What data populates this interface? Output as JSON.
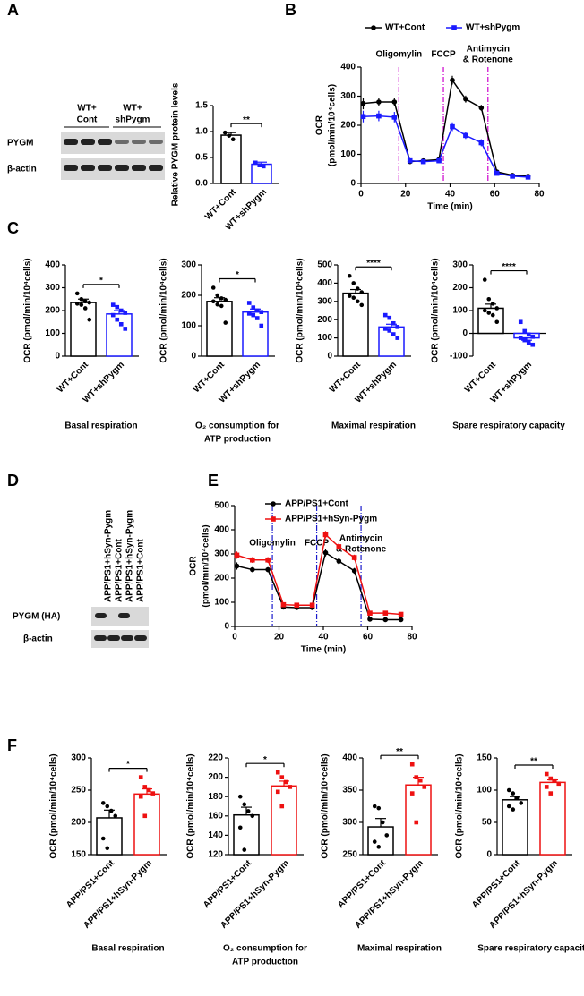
{
  "panel_labels": [
    "A",
    "B",
    "C",
    "D",
    "E",
    "F"
  ],
  "blots": {
    "A": {
      "columns": [
        [
          "WT+",
          "Cont"
        ],
        [
          "WT+",
          "shPygm"
        ]
      ],
      "rows": [
        "PYGM",
        "β-actin"
      ]
    },
    "D": {
      "columns": [
        "APP/PS1+hSyn-Pygm",
        "APP/PS1+Cont",
        "APP/PS1+hSyn-Pygm",
        "APP/PS1+Cont"
      ],
      "rows": [
        "PYGM (HA)",
        "β-actin"
      ]
    }
  },
  "chart_data": [
    {
      "type": "bar",
      "ylabel": [
        "Relative PYGM protein levels"
      ],
      "categories": [
        "WT+Cont",
        "WT+shPygm"
      ],
      "values": [
        0.93,
        0.37
      ],
      "errors": [
        0.05,
        0.04
      ],
      "colors": [
        "#000000",
        "#1a1aff"
      ],
      "points": [
        [
          0.98,
          0.92,
          0.85
        ],
        [
          0.4,
          0.35,
          0.33
        ]
      ],
      "ylim": [
        0,
        1.5
      ],
      "yticks": [
        {
          "value": 0,
          "label": "0.0"
        },
        0.5,
        {
          "value": 1,
          "label": "1.0"
        },
        1.5
      ],
      "significance": "**"
    },
    {
      "type": "line",
      "ylabel": [
        "OCR",
        "(pmol/min/10⁴cells)"
      ],
      "xlabel": "Time (min)",
      "x": [
        1,
        8,
        15,
        22,
        28,
        35,
        41,
        47,
        54,
        61,
        68,
        75
      ],
      "series": [
        {
          "name": "WT+Cont",
          "color": "#000000",
          "values": [
            275,
            280,
            280,
            75,
            78,
            82,
            355,
            290,
            260,
            40,
            28,
            25
          ],
          "errors": [
            20,
            15,
            15,
            8,
            8,
            8,
            15,
            12,
            10,
            5,
            4,
            4
          ]
        },
        {
          "name": "WT+shPygm",
          "color": "#1a1aff",
          "values": [
            230,
            232,
            228,
            78,
            75,
            78,
            195,
            165,
            140,
            35,
            25,
            22
          ],
          "errors": [
            20,
            18,
            18,
            8,
            8,
            8,
            15,
            12,
            12,
            5,
            4,
            4
          ]
        }
      ],
      "xlim": [
        0,
        80
      ],
      "xticks": [
        0,
        20,
        40,
        60,
        80
      ],
      "ylim": [
        0,
        400
      ],
      "yticks": [
        0,
        100,
        200,
        300,
        400
      ],
      "annotations": [
        {
          "text": [
            "Oligomylin"
          ],
          "x": 17
        },
        {
          "text": [
            "FCCP"
          ],
          "x": 37
        },
        {
          "text": [
            "Antimycin",
            "& Rotenone"
          ],
          "x": 57
        }
      ],
      "annotation_color": "#cc00cc",
      "legend": "top"
    },
    {
      "type": "bar",
      "ylabel": [
        "OCR (pmol/min/10⁴cells)"
      ],
      "xlabel": [
        "Basal respiration"
      ],
      "categories": [
        "WT+Cont",
        "WT+shPygm"
      ],
      "values": [
        235,
        185
      ],
      "errors": [
        15,
        15
      ],
      "colors": [
        "#000000",
        "#1a1aff"
      ],
      "points": [
        [
          275,
          250,
          240,
          235,
          230,
          225,
          210,
          160
        ],
        [
          225,
          215,
          200,
          190,
          180,
          160,
          140,
          120
        ]
      ],
      "ylim": [
        0,
        400
      ],
      "yticks": [
        0,
        100,
        200,
        300,
        400
      ],
      "significance": "*"
    },
    {
      "type": "bar",
      "ylabel": [
        "OCR (pmol/min/10⁴cells)"
      ],
      "xlabel": [
        "O₂ consumption for",
        "ATP production"
      ],
      "categories": [
        "WT+Cont",
        "WT+shPygm"
      ],
      "values": [
        180,
        145
      ],
      "errors": [
        12,
        10
      ],
      "colors": [
        "#000000",
        "#1a1aff"
      ],
      "points": [
        [
          225,
          200,
          190,
          185,
          180,
          170,
          165,
          110
        ],
        [
          175,
          160,
          150,
          145,
          140,
          135,
          125,
          100
        ]
      ],
      "ylim": [
        0,
        300
      ],
      "yticks": [
        0,
        100,
        200,
        300
      ],
      "significance": "*"
    },
    {
      "type": "bar",
      "ylabel": [
        "OCR (pmol/min/10⁴cells)"
      ],
      "xlabel": [
        "Maximal respiration"
      ],
      "categories": [
        "WT+Cont",
        "WT+shPygm"
      ],
      "values": [
        345,
        160
      ],
      "errors": [
        20,
        15
      ],
      "colors": [
        "#000000",
        "#1a1aff"
      ],
      "points": [
        [
          440,
          400,
          370,
          350,
          330,
          320,
          300,
          280
        ],
        [
          225,
          210,
          180,
          160,
          150,
          140,
          120,
          100
        ]
      ],
      "ylim": [
        0,
        500
      ],
      "yticks": [
        0,
        100,
        200,
        300,
        400,
        500
      ],
      "significance": "****"
    },
    {
      "type": "bar",
      "ylabel": [
        "OCR (pmol/min/10⁴cells)"
      ],
      "xlabel": [
        "Spare respiratory capacity"
      ],
      "categories": [
        "WT+Cont",
        "WT+shPygm"
      ],
      "values": [
        110,
        -20
      ],
      "errors": [
        18,
        10
      ],
      "colors": [
        "#000000",
        "#1a1aff"
      ],
      "points": [
        [
          235,
          150,
          130,
          110,
          100,
          90,
          80,
          50
        ],
        [
          50,
          10,
          -5,
          -15,
          -20,
          -30,
          -40,
          -50
        ]
      ],
      "ylim": [
        -100,
        300
      ],
      "yticks": [
        -100,
        0,
        100,
        200,
        300
      ],
      "significance": "****"
    },
    {
      "type": "line",
      "ylabel": [
        "OCR",
        "(pmol/min/10⁴cells)"
      ],
      "xlabel": "Time (min)",
      "x": [
        1,
        8,
        15,
        22,
        28,
        35,
        41,
        47,
        54,
        61,
        68,
        75
      ],
      "series": [
        {
          "name": "APP/PS1+Cont",
          "color": "#000000",
          "values": [
            250,
            235,
            235,
            80,
            78,
            78,
            305,
            270,
            230,
            30,
            28,
            28
          ],
          "errors": [
            15,
            10,
            10,
            6,
            6,
            6,
            15,
            12,
            12,
            5,
            4,
            4
          ]
        },
        {
          "name": "APP/PS1+hSyn-Pygm",
          "color": "#ee1111",
          "values": [
            295,
            275,
            275,
            90,
            88,
            88,
            380,
            330,
            285,
            55,
            55,
            50
          ],
          "errors": [
            15,
            12,
            12,
            6,
            6,
            6,
            15,
            15,
            12,
            6,
            6,
            6
          ]
        }
      ],
      "xlim": [
        0,
        80
      ],
      "xticks": [
        0,
        20,
        40,
        60,
        80
      ],
      "ylim": [
        0,
        500
      ],
      "yticks": [
        0,
        100,
        200,
        300,
        400,
        500
      ],
      "annotations": [
        {
          "text": [
            "Oligomylin"
          ],
          "x": 17
        },
        {
          "text": [
            "FCCP"
          ],
          "x": 37
        },
        {
          "text": [
            "Antimycin",
            "& Rotenone"
          ],
          "x": 57
        }
      ],
      "annotation_color": "#1a1acc",
      "legend": "top"
    },
    {
      "type": "bar",
      "ylabel": [
        "OCR (pmol/min/10⁴cells)"
      ],
      "xlabel": [
        "Basal respiration"
      ],
      "categories": [
        "APP/PS1+Cont",
        "APP/PS1+hSyn-Pygm"
      ],
      "values": [
        207,
        244
      ],
      "errors": [
        12,
        8
      ],
      "colors": [
        "#000000",
        "#ee1111"
      ],
      "points": [
        [
          230,
          225,
          218,
          210,
          175,
          160
        ],
        [
          270,
          255,
          250,
          245,
          240,
          210
        ]
      ],
      "ylim": [
        150,
        300
      ],
      "yticks": [
        150,
        200,
        250,
        300
      ],
      "significance": "*"
    },
    {
      "type": "bar",
      "ylabel": [
        "OCR (pmol/min/10⁴cells)"
      ],
      "xlabel": [
        "O₂ consumption for",
        "ATP production"
      ],
      "categories": [
        "APP/PS1+Cont",
        "APP/PS1+hSyn-Pygm"
      ],
      "values": [
        161,
        191
      ],
      "errors": [
        8,
        5
      ],
      "colors": [
        "#000000",
        "#ee1111"
      ],
      "points": [
        [
          180,
          172,
          165,
          160,
          148,
          125
        ],
        [
          205,
          200,
          195,
          190,
          185,
          170
        ]
      ],
      "ylim": [
        120,
        220
      ],
      "yticks": [
        120,
        140,
        160,
        180,
        200,
        220
      ],
      "significance": "*"
    },
    {
      "type": "bar",
      "ylabel": [
        "OCR (pmol/min/10⁴cells)"
      ],
      "xlabel": [
        "Maximal respiration"
      ],
      "categories": [
        "APP/PS1+Cont",
        "APP/PS1+hSyn-Pygm"
      ],
      "values": [
        293,
        358
      ],
      "errors": [
        13,
        12
      ],
      "colors": [
        "#000000",
        "#ee1111"
      ],
      "points": [
        [
          325,
          322,
          300,
          280,
          270,
          262
        ],
        [
          390,
          370,
          365,
          355,
          345,
          300
        ]
      ],
      "ylim": [
        250,
        400
      ],
      "yticks": [
        250,
        300,
        350,
        400
      ],
      "significance": "**"
    },
    {
      "type": "bar",
      "ylabel": [
        "OCR (pmol/min/10⁴cells)"
      ],
      "xlabel": [
        "Spare respiratory capacity"
      ],
      "categories": [
        "APP/PS1+Cont",
        "APP/PS1+hSyn-Pygm"
      ],
      "values": [
        85,
        112
      ],
      "errors": [
        5,
        4
      ],
      "colors": [
        "#000000",
        "#ee1111"
      ],
      "points": [
        [
          100,
          95,
          88,
          80,
          75,
          70
        ],
        [
          125,
          118,
          115,
          110,
          105,
          95
        ]
      ],
      "ylim": [
        0,
        150
      ],
      "yticks": [
        0,
        50,
        100,
        150
      ],
      "significance": "**"
    }
  ]
}
